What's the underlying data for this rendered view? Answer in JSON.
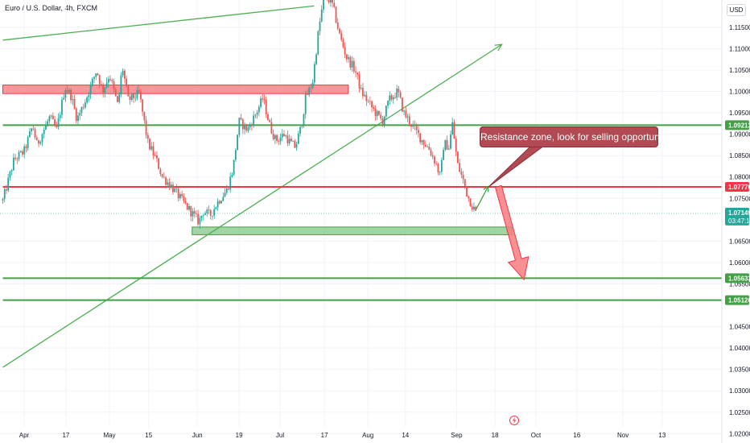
{
  "header": {
    "title": "Euro / U.S. Dollar, 4h, FXCM",
    "currency": "USD"
  },
  "chart_data": {
    "type": "candlestick",
    "title": "Euro / U.S. Dollar, 4h, FXCM",
    "ylim": [
      1.0195,
      1.1195
    ],
    "y_ticks": [
      "1.11500",
      "1.11000",
      "1.10500",
      "1.10000",
      "1.09500",
      "1.09000",
      "1.08500",
      "1.08000",
      "1.07500",
      "1.06500",
      "1.06000",
      "1.05500",
      "1.04500",
      "1.04000",
      "1.03500",
      "1.03000",
      "1.02500",
      "1.02000"
    ],
    "x_ticks": [
      {
        "label": "Apr",
        "x": 0.0
      },
      {
        "label": "17",
        "x": 0.49
      },
      {
        "label": "May",
        "x": 1.0
      },
      {
        "label": "15",
        "x": 1.46
      },
      {
        "label": "Jun",
        "x": 2.03
      },
      {
        "label": "19",
        "x": 2.52
      },
      {
        "label": "Jul",
        "x": 3.0
      },
      {
        "label": "17",
        "x": 3.52
      },
      {
        "label": "Aug",
        "x": 4.03
      },
      {
        "label": "14",
        "x": 4.47
      },
      {
        "label": "Sep",
        "x": 5.07
      },
      {
        "label": "18",
        "x": 5.52
      },
      {
        "label": "Oct",
        "x": 6.0
      },
      {
        "label": "16",
        "x": 6.48
      },
      {
        "label": "Nov",
        "x": 7.02
      },
      {
        "label": "13",
        "x": 7.48
      }
    ],
    "path": [
      [
        -0.25,
        1.0745
      ],
      [
        -0.12,
        1.084
      ],
      [
        0.0,
        1.086
      ],
      [
        0.1,
        1.092
      ],
      [
        0.15,
        1.0875
      ],
      [
        0.3,
        1.094
      ],
      [
        0.38,
        1.091
      ],
      [
        0.48,
        1.101
      ],
      [
        0.55,
        1.099
      ],
      [
        0.62,
        1.0935
      ],
      [
        0.72,
        1.098
      ],
      [
        0.85,
        1.105
      ],
      [
        0.92,
        1.1
      ],
      [
        1.0,
        1.104
      ],
      [
        1.1,
        1.0965
      ],
      [
        1.15,
        1.106
      ],
      [
        1.22,
        1.098
      ],
      [
        1.35,
        1.0995
      ],
      [
        1.45,
        1.088
      ],
      [
        1.55,
        1.084
      ],
      [
        1.62,
        1.08
      ],
      [
        1.72,
        1.078
      ],
      [
        1.85,
        1.0745
      ],
      [
        1.95,
        1.072
      ],
      [
        2.05,
        1.0695
      ],
      [
        2.1,
        1.072
      ],
      [
        2.18,
        1.071
      ],
      [
        2.28,
        1.0745
      ],
      [
        2.38,
        1.077
      ],
      [
        2.45,
        1.082
      ],
      [
        2.52,
        1.093
      ],
      [
        2.62,
        1.091
      ],
      [
        2.72,
        1.095
      ],
      [
        2.8,
        1.0985
      ],
      [
        2.88,
        1.092
      ],
      [
        2.95,
        1.0885
      ],
      [
        3.05,
        1.09
      ],
      [
        3.12,
        1.088
      ],
      [
        3.18,
        1.087
      ],
      [
        3.25,
        1.092
      ],
      [
        3.3,
        1.0985
      ],
      [
        3.38,
        1.102
      ],
      [
        3.45,
        1.114
      ],
      [
        3.52,
        1.123
      ],
      [
        3.62,
        1.12
      ],
      [
        3.7,
        1.113
      ],
      [
        3.78,
        1.108
      ],
      [
        3.88,
        1.105
      ],
      [
        3.95,
        1.1
      ],
      [
        4.05,
        1.097
      ],
      [
        4.12,
        1.095
      ],
      [
        4.2,
        1.093
      ],
      [
        4.28,
        1.098
      ],
      [
        4.38,
        1.1
      ],
      [
        4.45,
        1.095
      ],
      [
        4.55,
        1.092
      ],
      [
        4.65,
        1.089
      ],
      [
        4.75,
        1.0865
      ],
      [
        4.82,
        1.0835
      ],
      [
        4.88,
        1.08
      ],
      [
        4.92,
        1.088
      ],
      [
        4.98,
        1.087
      ],
      [
        5.02,
        1.0925
      ],
      [
        5.08,
        1.083
      ],
      [
        5.15,
        1.079
      ],
      [
        5.2,
        1.0755
      ],
      [
        5.26,
        1.073
      ],
      [
        5.3,
        1.0715
      ]
    ],
    "resistance_zone": {
      "price_high": 1.1015,
      "price_low": 1.0995,
      "x_start": -0.25,
      "x_end": 3.8
    },
    "support_zone": {
      "price_high": 1.0683,
      "price_low": 1.0665,
      "x_start": 1.97,
      "x_end": 5.72
    },
    "trendlines": [
      {
        "name": "upper-trendline",
        "from": [
          -0.25,
          1.112
        ],
        "to": [
          3.4,
          1.12
        ],
        "color": "#4caf50"
      },
      {
        "name": "rising-trendline",
        "from": [
          -0.25,
          1.0355
        ],
        "to": [
          5.6,
          1.111
        ],
        "color": "#4caf50",
        "arrow": true
      }
    ],
    "levels": [
      {
        "price": 1.09213,
        "label": "1.09213",
        "color": "#43a047",
        "x_start": -0.25
      },
      {
        "price": 1.0777,
        "label": "1.07770",
        "color": "#f23645",
        "x_start": -0.25
      },
      {
        "price": 1.05633,
        "label": "1.05633",
        "color": "#43a047",
        "x_start": -0.25
      },
      {
        "price": 1.0512,
        "label": "1.05120",
        "color": "#43a047",
        "x_start": -0.25
      }
    ],
    "current_price": {
      "price": 1.07149,
      "label": "1.07149",
      "countdown": "03:47:13",
      "color": "#26a69a"
    },
    "projection": {
      "up_leg": {
        "from": [
          5.3,
          1.0725
        ],
        "to": [
          5.44,
          1.0778
        ]
      },
      "down_arrow": {
        "from": [
          5.56,
          1.0778
        ],
        "to": [
          5.86,
          1.056
        ]
      }
    },
    "annotation": "Resistance zone, look for selling opportunities"
  }
}
